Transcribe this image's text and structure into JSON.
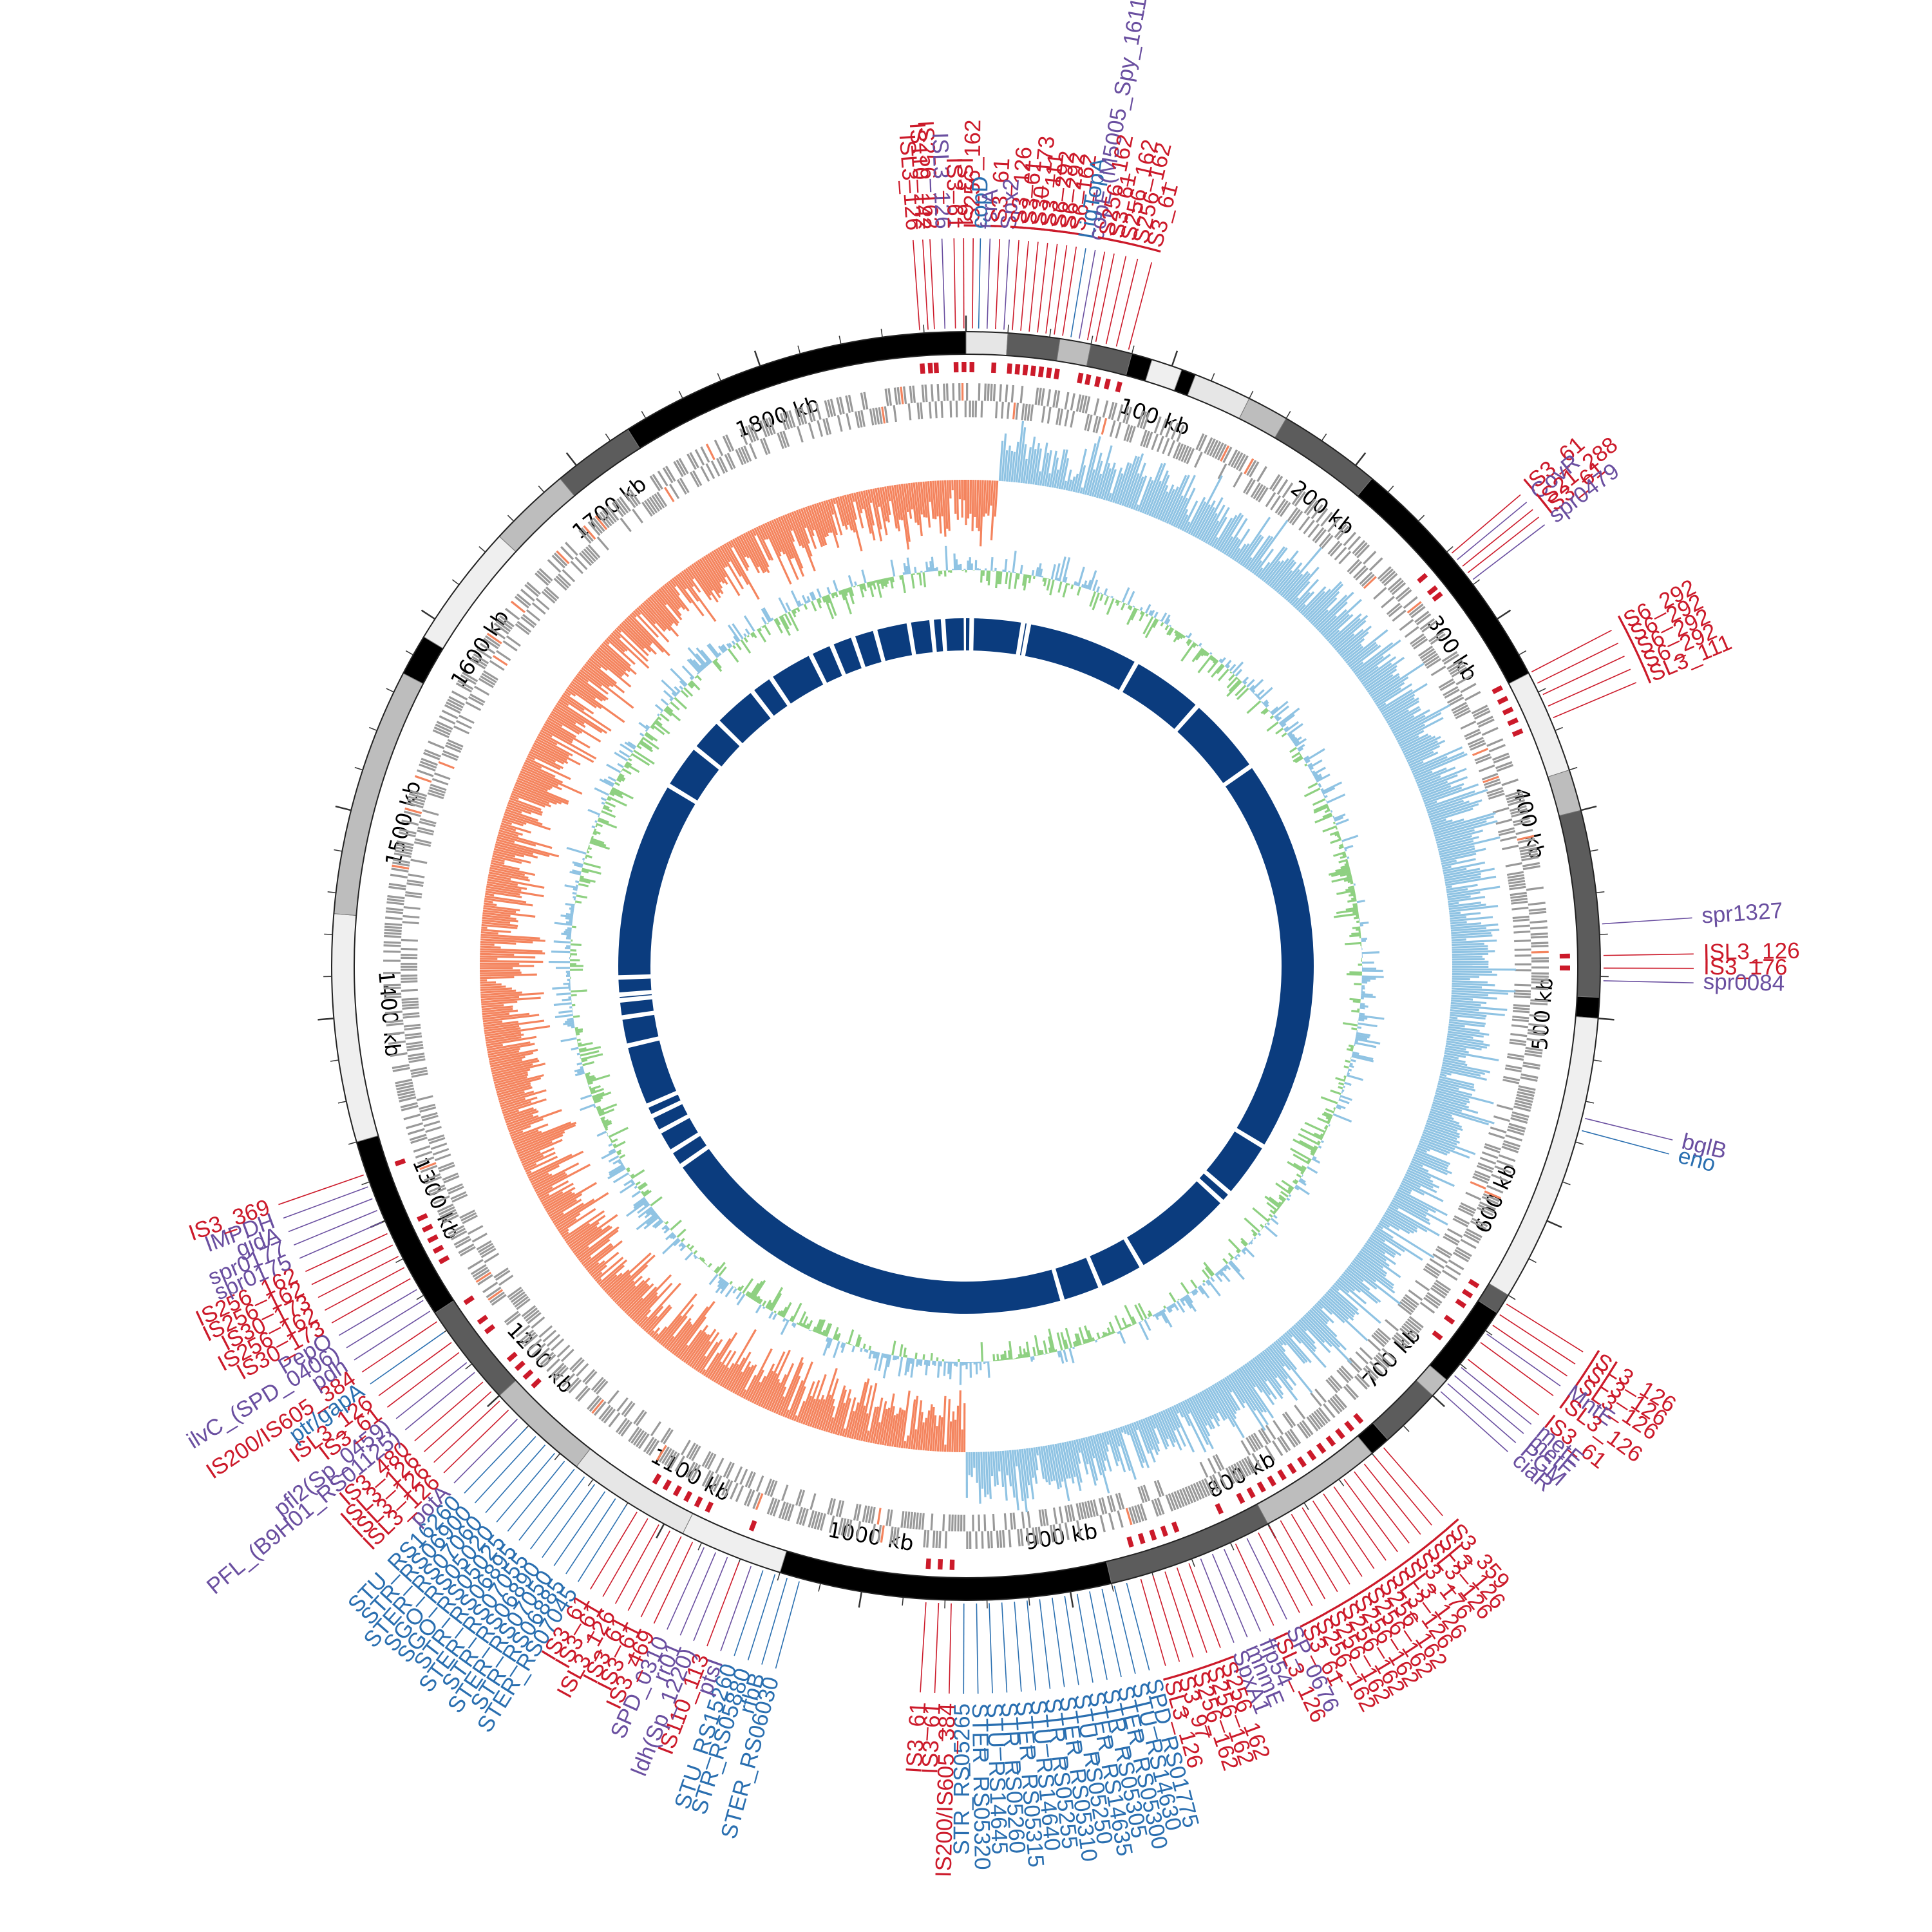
{
  "genome": {
    "length_kb": 1900,
    "scale_labels": [
      "100 kb",
      "200 kb",
      "300 kb",
      "400 kb",
      "500 kb",
      "600 kb",
      "700 kb",
      "800 kb",
      "900 kb",
      "1000 kb",
      "1100 kb",
      "1200 kb",
      "1300 kb",
      "1400 kb",
      "1500 kb",
      "1600 kb",
      "1700 kb",
      "1800 kb"
    ],
    "scale_positions_kb": [
      100,
      200,
      300,
      400,
      500,
      600,
      700,
      800,
      900,
      1000,
      1100,
      1200,
      1300,
      1400,
      1500,
      1600,
      1700,
      1800
    ]
  },
  "colors": {
    "is_element": "#cc1a2a",
    "function_gene": "#6a4fa0",
    "homolog_gene": "#2a6fb0",
    "gc_skew_negative": "#f4845e",
    "gc_skew_positive": "#8fc3e3",
    "gc_content_low": "#8ed081",
    "gc_content_high": "#8fc3e3",
    "inner_blocks": "#0b3c7e",
    "cds": "#999999"
  },
  "segments": [
    {
      "start": 0,
      "end": 20,
      "shade": "#e6e6e6"
    },
    {
      "start": 20,
      "end": 45,
      "shade": "#5c5c5c"
    },
    {
      "start": 45,
      "end": 60,
      "shade": "#bdbdbd"
    },
    {
      "start": 60,
      "end": 80,
      "shade": "#5c5c5c"
    },
    {
      "start": 80,
      "end": 90,
      "shade": "#000000"
    },
    {
      "start": 90,
      "end": 105,
      "shade": "#efefef"
    },
    {
      "start": 105,
      "end": 112,
      "shade": "#000000"
    },
    {
      "start": 112,
      "end": 140,
      "shade": "#e6e6e6"
    },
    {
      "start": 140,
      "end": 160,
      "shade": "#bdbdbd"
    },
    {
      "start": 160,
      "end": 210,
      "shade": "#5c5c5c"
    },
    {
      "start": 210,
      "end": 330,
      "shade": "#000000"
    },
    {
      "start": 330,
      "end": 380,
      "shade": "#efefef"
    },
    {
      "start": 380,
      "end": 400,
      "shade": "#bdbdbd"
    },
    {
      "start": 400,
      "end": 490,
      "shade": "#5c5c5c"
    },
    {
      "start": 490,
      "end": 500,
      "shade": "#000000"
    },
    {
      "start": 500,
      "end": 640,
      "shade": "#efefef"
    },
    {
      "start": 640,
      "end": 650,
      "shade": "#5c5c5c"
    },
    {
      "start": 650,
      "end": 690,
      "shade": "#000000"
    },
    {
      "start": 690,
      "end": 700,
      "shade": "#bdbdbd"
    },
    {
      "start": 700,
      "end": 730,
      "shade": "#5c5c5c"
    },
    {
      "start": 730,
      "end": 740,
      "shade": "#000000"
    },
    {
      "start": 740,
      "end": 800,
      "shade": "#bdbdbd"
    },
    {
      "start": 800,
      "end": 880,
      "shade": "#5c5c5c"
    },
    {
      "start": 880,
      "end": 1040,
      "shade": "#000000"
    },
    {
      "start": 1040,
      "end": 1090,
      "shade": "#efefef"
    },
    {
      "start": 1090,
      "end": 1150,
      "shade": "#e6e6e6"
    },
    {
      "start": 1150,
      "end": 1200,
      "shade": "#bdbdbd"
    },
    {
      "start": 1200,
      "end": 1250,
      "shade": "#5c5c5c"
    },
    {
      "start": 1250,
      "end": 1340,
      "shade": "#000000"
    },
    {
      "start": 1340,
      "end": 1450,
      "shade": "#efefef"
    },
    {
      "start": 1450,
      "end": 1570,
      "shade": "#bdbdbd"
    },
    {
      "start": 1570,
      "end": 1590,
      "shade": "#000000"
    },
    {
      "start": 1590,
      "end": 1650,
      "shade": "#efefef"
    },
    {
      "start": 1650,
      "end": 1690,
      "shade": "#bdbdbd"
    },
    {
      "start": 1690,
      "end": 1730,
      "shade": "#5c5c5c"
    },
    {
      "start": 1730,
      "end": 1900,
      "shade": "#000000"
    }
  ],
  "inner_gaps_kb": [
    5,
    50,
    55,
    155,
    220,
    290,
    640,
    690,
    700,
    790,
    830,
    865,
    1240,
    1255,
    1275,
    1290,
    1300,
    1355,
    1380,
    1395,
    1400,
    1415,
    1590,
    1630,
    1660,
    1700,
    1720,
    1760,
    1780,
    1800,
    1820,
    1850,
    1870,
    1880
  ],
  "labels": [
    {
      "text": "ISL3_126",
      "type": "is_element",
      "kb": -22
    },
    {
      "text": "IS110_142",
      "type": "is_element",
      "kb": -18
    },
    {
      "text": "IS256_162",
      "type": "is_element",
      "kb": -15
    },
    {
      "text": "ISL3_126",
      "type": "function_gene",
      "kb": -10
    },
    {
      "text": "IS3_61",
      "type": "is_element",
      "kb": -5
    },
    {
      "text": "IS3_61",
      "type": "is_element",
      "kb": -1
    },
    {
      "text": "IS256_162",
      "type": "is_element",
      "kb": 3
    },
    {
      "text": "copD",
      "type": "homolog_gene",
      "kb": 6
    },
    {
      "text": "fsrA",
      "type": "function_gene",
      "kb": 10
    },
    {
      "text": "IS3_61",
      "type": "is_element",
      "kb": 14
    },
    {
      "text": "Spx2",
      "type": "function_gene",
      "kb": 18
    },
    {
      "text": "IS3_126",
      "type": "is_element",
      "kb": 22
    },
    {
      "text": "IS3_61",
      "type": "is_element",
      "kb": 26
    },
    {
      "text": "IS30_173",
      "type": "is_element",
      "kb": 30
    },
    {
      "text": "IS3_111",
      "type": "is_element",
      "kb": 34
    },
    {
      "text": "IS6_292",
      "type": "is_element",
      "kb": 38
    },
    {
      "text": "IS6_292",
      "type": "is_element",
      "kb": 42
    },
    {
      "text": "IS6_162",
      "type": "is_element",
      "kb": 46
    },
    {
      "text": "LigTopA",
      "type": "homolog_gene",
      "kb": 50
    },
    {
      "text": "copE (M5005_Spy_1611)",
      "type": "function_gene",
      "kb": 54
    },
    {
      "text": "IS256_162",
      "type": "is_element",
      "kb": 58
    },
    {
      "text": "IS3_61",
      "type": "is_element",
      "kb": 62
    },
    {
      "text": "IS256_162",
      "type": "is_element",
      "kb": 67
    },
    {
      "text": "IS256_162",
      "type": "is_element",
      "kb": 72
    },
    {
      "text": "IS3_61",
      "type": "is_element",
      "kb": 78
    },
    {
      "text": "IS3_61",
      "type": "is_element",
      "kb": 262
    },
    {
      "text": "CovR",
      "type": "function_gene",
      "kb": 266
    },
    {
      "text": "IS21_288",
      "type": "is_element",
      "kb": 270
    },
    {
      "text": "IS3_61",
      "type": "is_element",
      "kb": 274
    },
    {
      "text": "spr0479",
      "type": "function_gene",
      "kb": 278
    },
    {
      "text": "IS6_292",
      "type": "is_element",
      "kb": 330
    },
    {
      "text": "IS6_292",
      "type": "is_element",
      "kb": 336
    },
    {
      "text": "IS6_292",
      "type": "is_element",
      "kb": 342
    },
    {
      "text": "IS6_292",
      "type": "is_element",
      "kb": 348
    },
    {
      "text": "ISL3_111",
      "type": "is_element",
      "kb": 354
    },
    {
      "text": "spr1327",
      "type": "function_gene",
      "kb": 455
    },
    {
      "text": "ISL3_126",
      "type": "is_element",
      "kb": 470
    },
    {
      "text": "IS3_176",
      "type": "is_element",
      "kb": 476
    },
    {
      "text": "spr0084",
      "type": "function_gene",
      "kb": 482
    },
    {
      "text": "bglB",
      "type": "function_gene",
      "kb": 548
    },
    {
      "text": "eno",
      "type": "homolog_gene",
      "kb": 554
    },
    {
      "text": "ISL3_126",
      "type": "is_element",
      "kb": 644
    },
    {
      "text": "ISL3_126",
      "type": "is_element",
      "kb": 650
    },
    {
      "text": "ISL3_126",
      "type": "is_element",
      "kb": 656
    },
    {
      "text": "MntE",
      "type": "function_gene",
      "kb": 661
    },
    {
      "text": "ISL3_126",
      "type": "is_element",
      "kb": 666
    },
    {
      "text": "IS3_61",
      "type": "is_element",
      "kb": 676
    },
    {
      "text": "metE",
      "type": "function_gene",
      "kb": 681
    },
    {
      "text": "metF",
      "type": "function_gene",
      "kb": 686
    },
    {
      "text": "PGM",
      "type": "function_gene",
      "kb": 691
    },
    {
      "text": "ciaR",
      "type": "function_gene",
      "kb": 696
    },
    {
      "text": "IS3_359",
      "type": "is_element",
      "kb": 734
    },
    {
      "text": "ISL3_126",
      "type": "is_element",
      "kb": 740
    },
    {
      "text": "ISL3_126",
      "type": "is_element",
      "kb": 746
    },
    {
      "text": "IS3_176",
      "type": "is_element",
      "kb": 752
    },
    {
      "text": "ISL3_126",
      "type": "is_element",
      "kb": 758
    },
    {
      "text": "ISL3_126",
      "type": "is_element",
      "kb": 764
    },
    {
      "text": "IS256_162",
      "type": "is_element",
      "kb": 770
    },
    {
      "text": "IS256_162",
      "type": "is_element",
      "kb": 776
    },
    {
      "text": "IS256_162",
      "type": "is_element",
      "kb": 782
    },
    {
      "text": "IS256_162",
      "type": "is_element",
      "kb": 788
    },
    {
      "text": "IS256_162",
      "type": "is_element",
      "kb": 794
    },
    {
      "text": "IS256_162",
      "type": "is_element",
      "kb": 800
    },
    {
      "text": "IS3_61",
      "type": "is_element",
      "kb": 806
    },
    {
      "text": "SP_0676",
      "type": "function_gene",
      "kb": 812
    },
    {
      "text": "ISL3_126",
      "type": "is_element",
      "kb": 818
    },
    {
      "text": "ffp54",
      "type": "function_gene",
      "kb": 824
    },
    {
      "text": "mnmE",
      "type": "function_gene",
      "kb": 830
    },
    {
      "text": "SpxA1",
      "type": "function_gene",
      "kb": 836
    },
    {
      "text": "IS256_162",
      "type": "is_element",
      "kb": 842
    },
    {
      "text": "IS256_162",
      "type": "is_element",
      "kb": 848
    },
    {
      "text": "IS256_162",
      "type": "is_element",
      "kb": 854
    },
    {
      "text": "IS3_97",
      "type": "is_element",
      "kb": 860
    },
    {
      "text": "ISL3_126",
      "type": "is_element",
      "kb": 866
    },
    {
      "text": "SPD_RS01775",
      "type": "homolog_gene",
      "kb": 873
    },
    {
      "text": "STU_RS14630",
      "type": "homolog_gene",
      "kb": 879
    },
    {
      "text": "STER_RS05300",
      "type": "homolog_gene",
      "kb": 885
    },
    {
      "text": "STR_RS05305",
      "type": "homolog_gene",
      "kb": 891
    },
    {
      "text": "STER_RS14635",
      "type": "homolog_gene",
      "kb": 897
    },
    {
      "text": "STU_RS05250",
      "type": "homolog_gene",
      "kb": 903
    },
    {
      "text": "STER_RS05310",
      "type": "homolog_gene",
      "kb": 909
    },
    {
      "text": "STR_RS05255",
      "type": "homolog_gene",
      "kb": 915
    },
    {
      "text": "STU_RS14640",
      "type": "homolog_gene",
      "kb": 921
    },
    {
      "text": "STER_RS05315",
      "type": "homolog_gene",
      "kb": 927
    },
    {
      "text": "STR_RS05260",
      "type": "homolog_gene",
      "kb": 933
    },
    {
      "text": "STU_RS14645",
      "type": "homolog_gene",
      "kb": 939
    },
    {
      "text": "STER_RS05320",
      "type": "homolog_gene",
      "kb": 945
    },
    {
      "text": "STR_RS05265",
      "type": "homolog_gene",
      "kb": 951
    },
    {
      "text": "IS200/IS605_384",
      "type": "is_element",
      "kb": 957
    },
    {
      "text": "IS3_61",
      "type": "is_element",
      "kb": 963
    },
    {
      "text": "IS3_61",
      "type": "is_element",
      "kb": 969
    },
    {
      "text": "STER_RS06030",
      "type": "homolog_gene",
      "kb": 1030
    },
    {
      "text": "rfbB",
      "type": "homolog_gene",
      "kb": 1036
    },
    {
      "text": "STR_RS05880",
      "type": "homolog_gene",
      "kb": 1042
    },
    {
      "text": "STU_RS15260",
      "type": "homolog_gene",
      "kb": 1048
    },
    {
      "text": "ptsI",
      "type": "function_gene",
      "kb": 1054
    },
    {
      "text": "IS110_113",
      "type": "is_element",
      "kb": 1060
    },
    {
      "text": "ldh(Sp_1220)",
      "type": "function_gene",
      "kb": 1066
    },
    {
      "text": "rr01",
      "type": "function_gene",
      "kb": 1072
    },
    {
      "text": "SPD_0310",
      "type": "function_gene",
      "kb": 1078
    },
    {
      "text": "IS3_469",
      "type": "is_element",
      "kb": 1084
    },
    {
      "text": "IS3_61",
      "type": "is_element",
      "kb": 1090
    },
    {
      "text": "IS3_61",
      "type": "is_element",
      "kb": 1096
    },
    {
      "text": "ISL3_126",
      "type": "is_element",
      "kb": 1102
    },
    {
      "text": "IS3_61",
      "type": "is_element",
      "kb": 1108
    },
    {
      "text": "IS3_61",
      "type": "is_element",
      "kb": 1114
    },
    {
      "text": "STER_RS07045",
      "type": "homolog_gene",
      "kb": 1120
    },
    {
      "text": "STR_RS06885",
      "type": "homolog_gene",
      "kb": 1126
    },
    {
      "text": "STER_RS07050",
      "type": "homolog_gene",
      "kb": 1132
    },
    {
      "text": "STR_RS06890",
      "type": "homolog_gene",
      "kb": 1138
    },
    {
      "text": "STER_RS07055",
      "type": "homolog_gene",
      "kb": 1144
    },
    {
      "text": "STR_RS06895",
      "type": "homolog_gene",
      "kb": 1150
    },
    {
      "text": "SGO_RS05025",
      "type": "homolog_gene",
      "kb": 1156
    },
    {
      "text": "SGO_RS05020",
      "type": "homolog_gene",
      "kb": 1162
    },
    {
      "text": "STER_RS07060",
      "type": "homolog_gene",
      "kb": 1168
    },
    {
      "text": "STR_RS06900",
      "type": "homolog_gene",
      "kb": 1174
    },
    {
      "text": "STU_RS16260",
      "type": "homolog_gene",
      "kb": 1180
    },
    {
      "text": "potA",
      "type": "function_gene",
      "kb": 1186
    },
    {
      "text": "ISL3_126",
      "type": "is_element",
      "kb": 1192
    },
    {
      "text": "ISL3_126",
      "type": "is_element",
      "kb": 1198
    },
    {
      "text": "ISL3_126",
      "type": "is_element",
      "kb": 1204
    },
    {
      "text": "IS3_480",
      "type": "is_element",
      "kb": 1210
    },
    {
      "text": "PFL_(B9H01_RS01125)",
      "type": "function_gene",
      "kb": 1216
    },
    {
      "text": "pfl2(Sp_0459)",
      "type": "function_gene",
      "kb": 1222
    },
    {
      "text": "IS3_61",
      "type": "is_element",
      "kb": 1228
    },
    {
      "text": "ISL3_126",
      "type": "is_element",
      "kb": 1234
    },
    {
      "text": "ptr/gapA",
      "type": "homolog_gene",
      "kb": 1240
    },
    {
      "text": "IS200/IS605_384",
      "type": "is_element",
      "kb": 1246
    },
    {
      "text": "pdh",
      "type": "function_gene",
      "kb": 1252
    },
    {
      "text": "ilvC_(SPD_0406)",
      "type": "function_gene",
      "kb": 1258
    },
    {
      "text": "PepO",
      "type": "function_gene",
      "kb": 1264
    },
    {
      "text": "IS30_173",
      "type": "is_element",
      "kb": 1270
    },
    {
      "text": "IS256_162",
      "type": "is_element",
      "kb": 1276
    },
    {
      "text": "IS30_173",
      "type": "is_element",
      "kb": 1282
    },
    {
      "text": "IS256_162",
      "type": "is_element",
      "kb": 1288
    },
    {
      "text": "IS256_162",
      "type": "is_element",
      "kb": 1294
    },
    {
      "text": "spr0175",
      "type": "function_gene",
      "kb": 1300
    },
    {
      "text": "spr0177",
      "type": "function_gene",
      "kb": 1306
    },
    {
      "text": "gidA",
      "type": "function_gene",
      "kb": 1312
    },
    {
      "text": "IMPDH",
      "type": "function_gene",
      "kb": 1318
    },
    {
      "text": "IS3_369",
      "type": "is_element",
      "kb": 1324
    }
  ]
}
